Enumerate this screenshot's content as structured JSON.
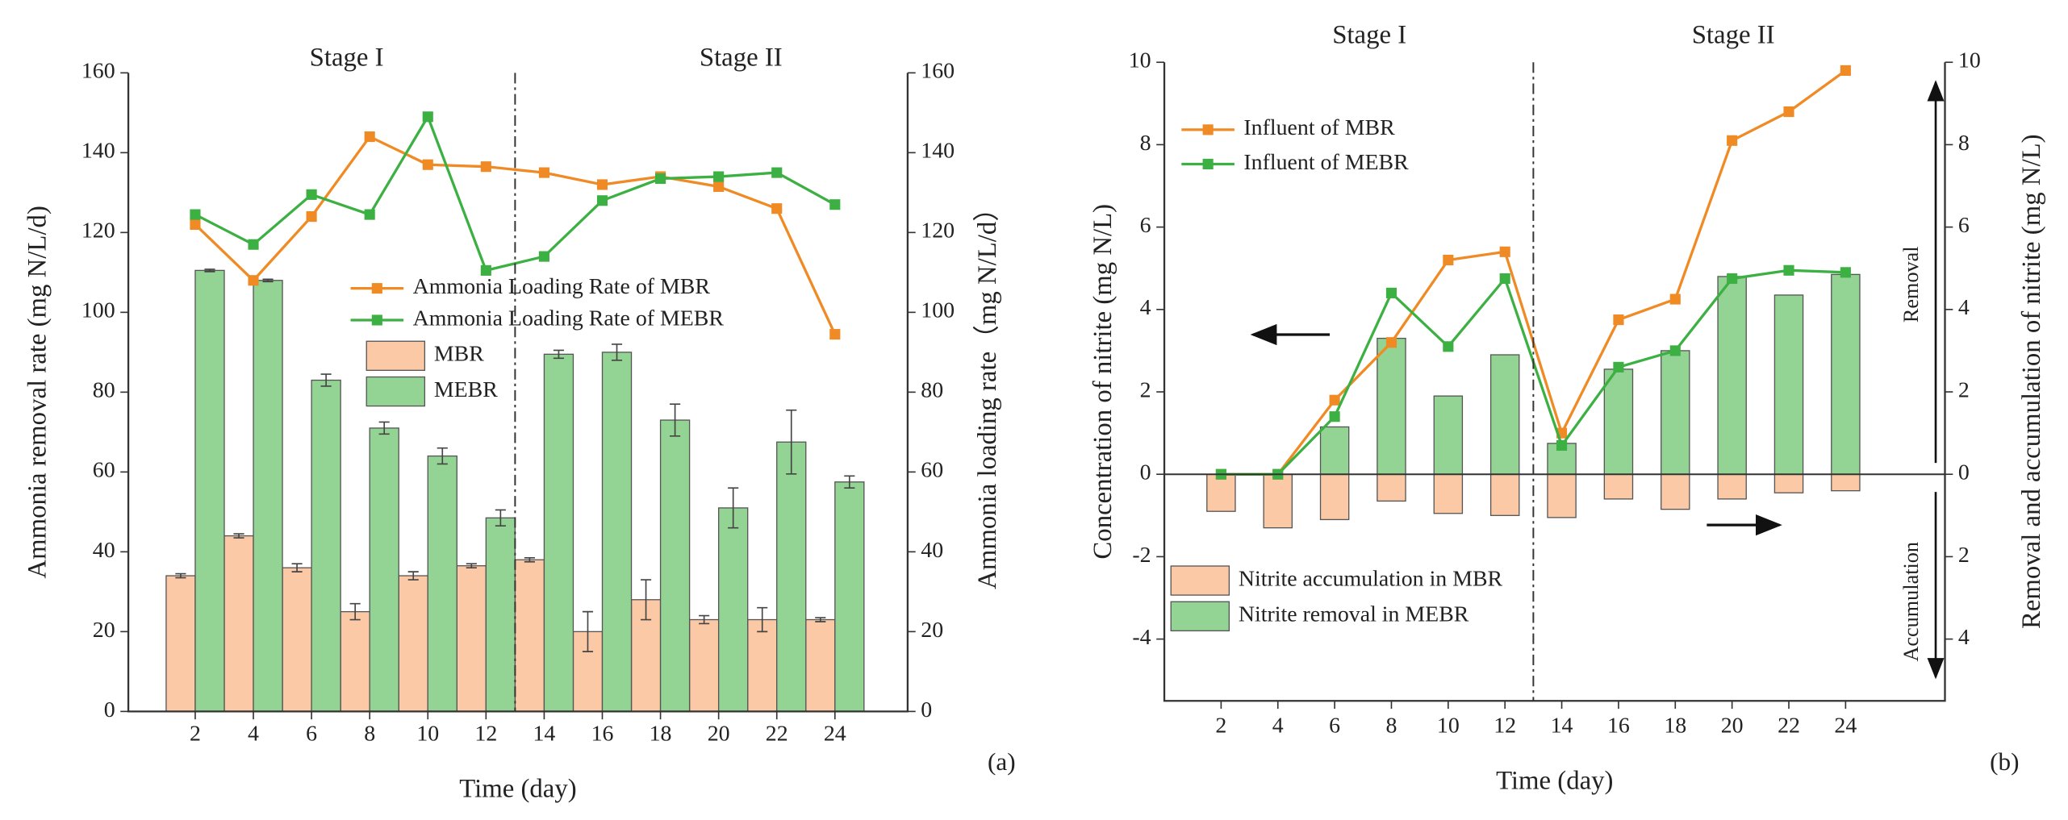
{
  "chart_data": [
    {
      "type": "bar-line",
      "barmode": "group",
      "stage_labels": [
        "Stage I",
        "Stage II"
      ],
      "annotation": "(a)",
      "xlabel": "Time (day)",
      "ylabel": "Ammonia removal rate (mg N/L/d)",
      "y2label": "Ammonia loading rate（mg N/L/d）",
      "x": [
        2,
        4,
        6,
        8,
        10,
        12,
        14,
        16,
        18,
        20,
        22,
        24
      ],
      "xlim": [
        -0.3,
        26.5
      ],
      "xticks": [
        2,
        4,
        6,
        8,
        10,
        12,
        14,
        16,
        18,
        20,
        22,
        24
      ],
      "ylim": [
        0,
        160
      ],
      "yticks": [
        0,
        20,
        40,
        60,
        80,
        100,
        120,
        140,
        160
      ],
      "y2lim": [
        0,
        160
      ],
      "y2ticks": [
        0,
        20,
        40,
        60,
        80,
        100,
        120,
        140,
        160
      ],
      "divider_x": 13,
      "series": [
        {
          "name": "MBR",
          "type": "bar",
          "color": "#fbc9a5",
          "values": [
            34,
            44,
            36,
            25,
            34,
            36.5,
            38,
            20,
            28,
            23,
            23,
            23
          ],
          "errors": [
            0.5,
            0.5,
            1,
            2,
            1,
            0.5,
            0.5,
            5,
            5,
            1,
            3,
            0.5
          ]
        },
        {
          "name": "MEBR",
          "type": "bar",
          "color": "#93d393",
          "values": [
            110.5,
            108,
            83,
            71,
            64,
            48.5,
            89.5,
            90,
            73,
            51,
            67.5,
            57.5
          ],
          "errors": [
            0.3,
            0.3,
            1.5,
            1.5,
            2,
            2,
            1,
            2,
            4,
            5,
            8,
            1.5
          ]
        },
        {
          "name": "Ammonia Loading Rate of MBR",
          "type": "line",
          "axis": "y2",
          "color": "#f08a24",
          "values": [
            122,
            108,
            124,
            144,
            137,
            136.5,
            135,
            132,
            134,
            131.5,
            126,
            94.5
          ]
        },
        {
          "name": "Ammonia Loading Rate of MEBR",
          "type": "line",
          "axis": "y2",
          "color": "#3cb043",
          "values": [
            124.5,
            117,
            129.5,
            124.5,
            149,
            110.5,
            114,
            128,
            133.5,
            134,
            135,
            127
          ]
        }
      ]
    },
    {
      "type": "bar-line",
      "barmode": "overlay",
      "stage_labels": [
        "Stage I",
        "Stage II"
      ],
      "annotation": "(b)",
      "side_labels": [
        "Removal",
        "Accumulation"
      ],
      "xlabel": "Time (day)",
      "ylabel": "Concentration of nitrite (mg N/L)",
      "y2label": "Removal and accumulation of nitrite (mg N/L)",
      "x": [
        2,
        4,
        6,
        8,
        10,
        12,
        14,
        16,
        18,
        20,
        22,
        24
      ],
      "xlim": [
        0,
        27.5
      ],
      "xticks": [
        2,
        4,
        6,
        8,
        10,
        12,
        14,
        16,
        18,
        20,
        22,
        24
      ],
      "ylim": [
        -5.5,
        10
      ],
      "yticks": [
        -4,
        -2,
        0,
        2,
        4,
        6,
        8,
        10
      ],
      "y2lim": [
        -5.5,
        10
      ],
      "y2ticks": [
        {
          "value": -4,
          "label": "4"
        },
        {
          "value": -2,
          "label": "2"
        },
        0,
        2,
        4,
        6,
        8,
        10
      ],
      "divider_x": 13,
      "series": [
        {
          "name": "Nitrite accumulation in MBR",
          "type": "bar",
          "color": "#fbc9a5",
          "values": [
            -0.9,
            -1.3,
            -1.1,
            -0.65,
            -0.95,
            -1.0,
            -1.05,
            -0.6,
            -0.85,
            -0.6,
            -0.45,
            -0.4
          ]
        },
        {
          "name": "Nitrite removal in MEBR",
          "type": "bar",
          "color": "#93d393",
          "values": [
            0,
            0,
            1.15,
            3.3,
            1.9,
            2.9,
            0.75,
            2.55,
            3.0,
            4.8,
            4.35,
            4.85
          ]
        },
        {
          "name": "Influent of MBR",
          "type": "line",
          "color": "#f08a24",
          "values": [
            0,
            0,
            1.8,
            3.2,
            5.2,
            5.4,
            1.0,
            3.75,
            4.25,
            8.1,
            8.8,
            9.8
          ]
        },
        {
          "name": "Influent of MEBR",
          "type": "line",
          "color": "#3cb043",
          "values": [
            0,
            0,
            1.4,
            4.4,
            3.1,
            4.75,
            0.7,
            2.6,
            3.0,
            4.75,
            4.95,
            4.9
          ]
        }
      ]
    }
  ]
}
